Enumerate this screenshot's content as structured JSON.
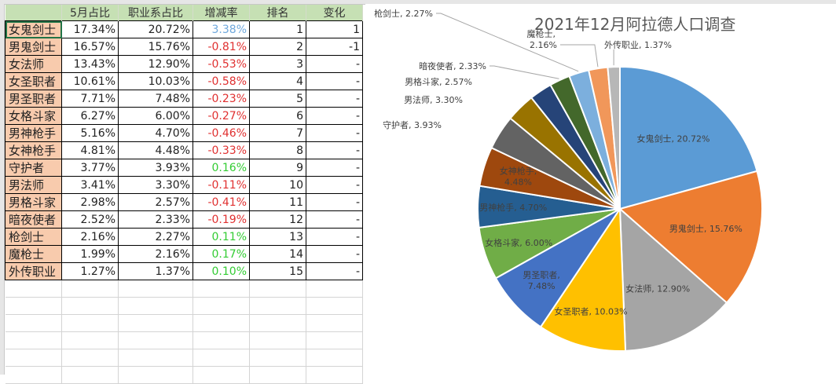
{
  "sheet": {
    "headers": [
      "",
      "5月占比",
      "职业系占比",
      "增减率",
      "排名",
      "变化"
    ],
    "rows": [
      {
        "name": "女鬼剑士",
        "may": "17.34%",
        "share": "20.72%",
        "rate": "3.38%",
        "rate_type": "pos-blue",
        "rank": "1",
        "change": "1"
      },
      {
        "name": "男鬼剑士",
        "may": "16.57%",
        "share": "15.76%",
        "rate": "-0.81%",
        "rate_type": "neg",
        "rank": "2",
        "change": "-1"
      },
      {
        "name": "女法师",
        "may": "13.43%",
        "share": "12.90%",
        "rate": "-0.53%",
        "rate_type": "neg",
        "rank": "3",
        "change": "-"
      },
      {
        "name": "女圣职者",
        "may": "10.61%",
        "share": "10.03%",
        "rate": "-0.58%",
        "rate_type": "neg",
        "rank": "4",
        "change": "-"
      },
      {
        "name": "男圣职者",
        "may": "7.71%",
        "share": "7.48%",
        "rate": "-0.23%",
        "rate_type": "neg",
        "rank": "5",
        "change": "-"
      },
      {
        "name": "女格斗家",
        "may": "6.27%",
        "share": "6.00%",
        "rate": "-0.27%",
        "rate_type": "neg",
        "rank": "6",
        "change": "-"
      },
      {
        "name": "男神枪手",
        "may": "5.16%",
        "share": "4.70%",
        "rate": "-0.46%",
        "rate_type": "neg",
        "rank": "7",
        "change": "-"
      },
      {
        "name": "女神枪手",
        "may": "4.81%",
        "share": "4.48%",
        "rate": "-0.33%",
        "rate_type": "neg",
        "rank": "8",
        "change": "-"
      },
      {
        "name": "守护者",
        "may": "3.77%",
        "share": "3.93%",
        "rate": "0.16%",
        "rate_type": "pos",
        "rank": "9",
        "change": "-"
      },
      {
        "name": "男法师",
        "may": "3.41%",
        "share": "3.30%",
        "rate": "-0.11%",
        "rate_type": "neg",
        "rank": "10",
        "change": "-"
      },
      {
        "name": "男格斗家",
        "may": "2.98%",
        "share": "2.57%",
        "rate": "-0.41%",
        "rate_type": "neg",
        "rank": "11",
        "change": "-"
      },
      {
        "name": "暗夜使者",
        "may": "2.52%",
        "share": "2.33%",
        "rate": "-0.19%",
        "rate_type": "neg",
        "rank": "12",
        "change": "-"
      },
      {
        "name": "枪剑士",
        "may": "2.16%",
        "share": "2.27%",
        "rate": "0.11%",
        "rate_type": "pos",
        "rank": "13",
        "change": "-"
      },
      {
        "name": "魔枪士",
        "may": "1.99%",
        "share": "2.16%",
        "rate": "0.17%",
        "rate_type": "pos",
        "rank": "14",
        "change": "-"
      },
      {
        "name": "外传职业",
        "may": "1.27%",
        "share": "1.37%",
        "rate": "0.10%",
        "rate_type": "pos",
        "rank": "15",
        "change": "-"
      }
    ],
    "colors": {
      "name_fill": "#f8cbad",
      "header_fill": "#c6e0b4",
      "neg": "#e03030",
      "pos": "#33cc33",
      "pos_blue": "#6fa8dc"
    }
  },
  "chart_data": {
    "type": "pie",
    "title": "2021年12月阿拉德人口调查",
    "categories": [
      "女鬼剑士",
      "男鬼剑士",
      "女法师",
      "女圣职者",
      "男圣职者",
      "女格斗家",
      "男神枪手",
      "女神枪手",
      "守护者",
      "男法师",
      "男格斗家",
      "暗夜使者",
      "枪剑士",
      "魔枪士",
      "外传职业"
    ],
    "values": [
      20.72,
      15.76,
      12.9,
      10.03,
      7.48,
      6.0,
      4.7,
      4.48,
      3.93,
      3.3,
      2.57,
      2.33,
      2.27,
      2.16,
      1.37
    ],
    "labels": [
      "女鬼剑士, 20.72%",
      "男鬼剑士, 15.76%",
      "女法师, 12.90%",
      "女圣职者, 10.03%",
      "男圣职者, 7.48%",
      "女格斗家, 6.00%",
      "男神枪手, 4.70%",
      "女神枪手, 4.48%",
      "守护者, 3.93%",
      "男法师, 3.30%",
      "男格斗家, 2.57%",
      "暗夜使者, 2.33%",
      "枪剑士, 2.27%",
      "魔枪士, 2.16%",
      "外传职业, 1.37%"
    ],
    "colors": [
      "#5b9bd5",
      "#ed7d31",
      "#a5a5a5",
      "#ffc000",
      "#4472c4",
      "#70ad47",
      "#255e91",
      "#9e480e",
      "#636363",
      "#997300",
      "#264478",
      "#43682b",
      "#7cafdd",
      "#f1975a",
      "#b7b7b7"
    ],
    "start_angle_deg": 0,
    "direction": "clockwise",
    "legend": "none"
  }
}
